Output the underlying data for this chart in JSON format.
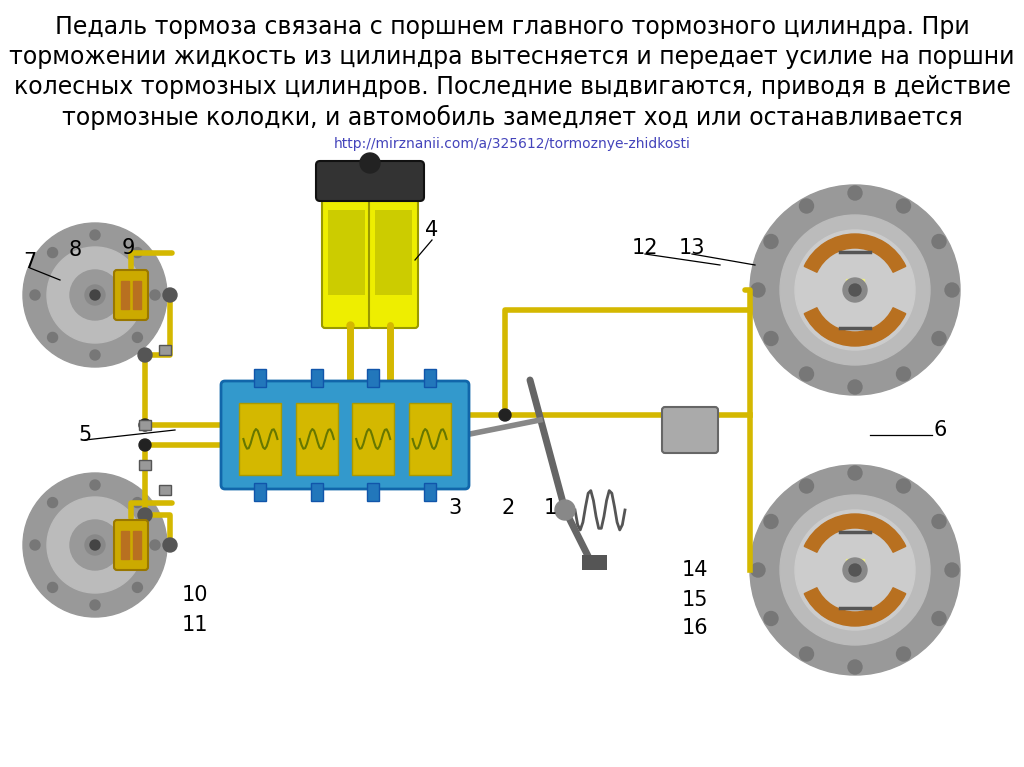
{
  "title_lines": [
    "Педаль тормоза связана с поршнем главного тормозного цилиндра. При",
    "торможении жидкость из цилиндра вытесняется и передает усилие на поршни",
    "колесных тормозных цилиндров. Последние выдвигаются, приводя в действие",
    "тормозные колодки, и автомобиль замедляет ход или останавливается"
  ],
  "url_text": "http://mirznanii.com/a/325612/tormoznye-zhidkosti",
  "bg_color": "#ffffff",
  "title_fontsize": 17,
  "url_fontsize": 10,
  "url_color": "#4444bb",
  "title_color": "#000000",
  "yellow": "#d4b800",
  "dark_yellow": "#b8a000",
  "blue": "#2288cc",
  "dark_blue": "#1166aa",
  "gray_outer": "#888888",
  "gray_inner": "#aaaaaa",
  "brown": "#b87020",
  "dark_gray": "#444444",
  "black": "#111111",
  "spring_green": "#888800",
  "label_fontsize": 15,
  "label_color": "#000000"
}
